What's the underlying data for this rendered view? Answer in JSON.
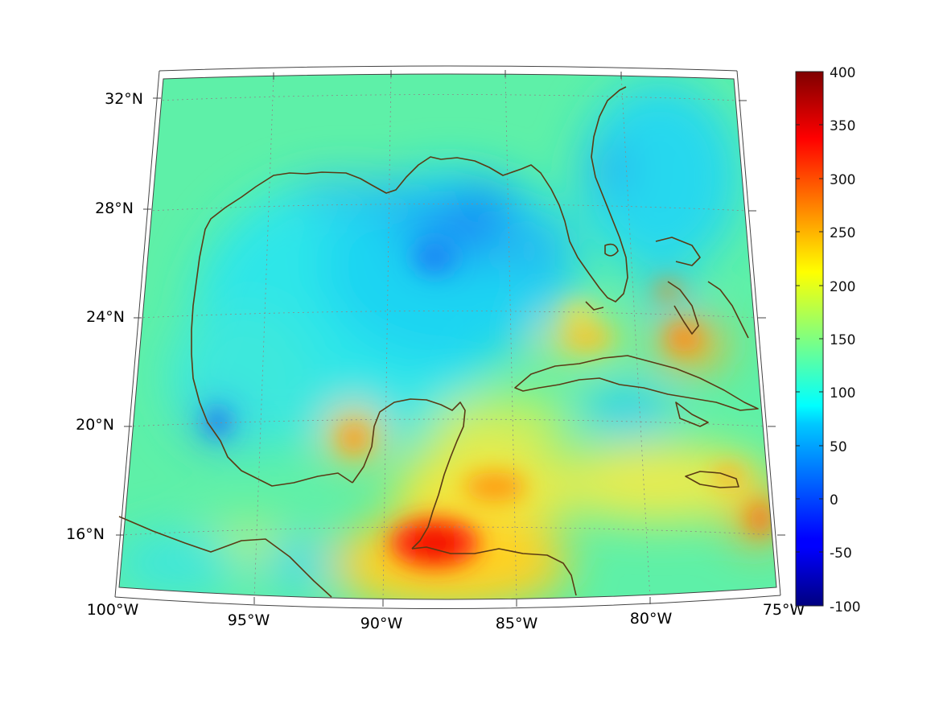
{
  "map": {
    "lon_labels": [
      "100°W",
      "95°W",
      "90°W",
      "85°W",
      "80°W",
      "75°W"
    ],
    "lat_labels": [
      "32°N",
      "28°N",
      "24°N",
      "20°N",
      "16°N"
    ],
    "colors": {
      "coast": "#5a3a14",
      "grid": "#8a8a8a",
      "frame": "#444444"
    }
  },
  "colorbar": {
    "tick_labels": [
      "400",
      "350",
      "300",
      "250",
      "200",
      "150",
      "100",
      "50",
      "0",
      "-50",
      "-100"
    ],
    "min": -100,
    "max": 400,
    "colormap": "jet"
  }
}
